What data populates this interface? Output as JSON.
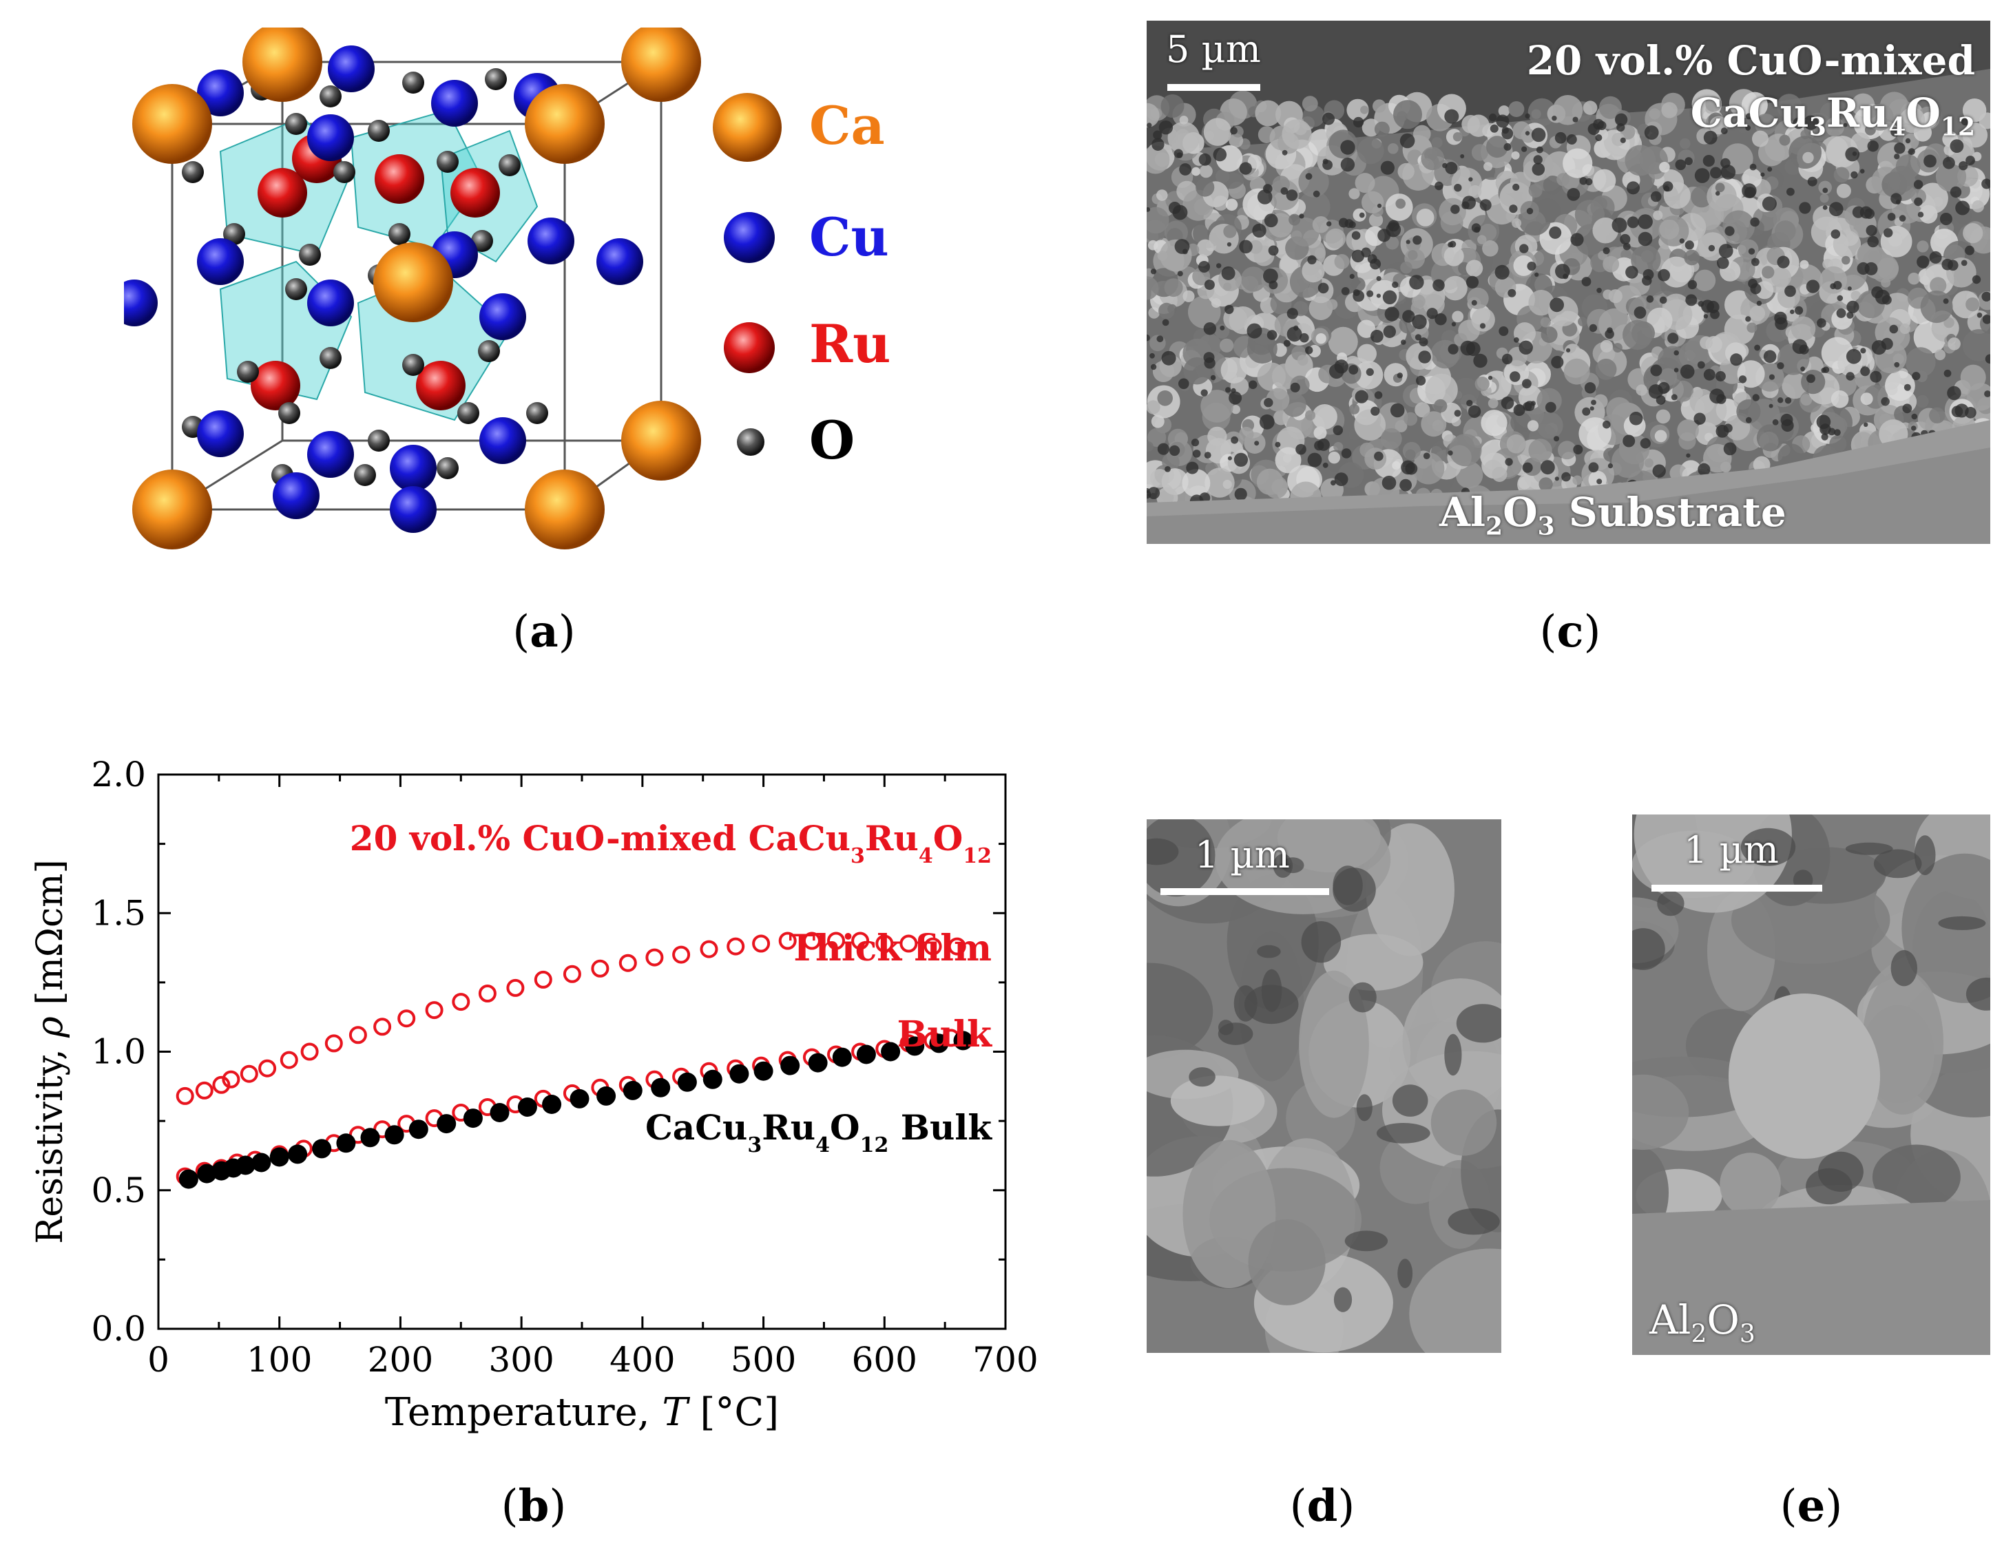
{
  "panels": {
    "a": {
      "caption": "a",
      "legend": [
        {
          "label": "Ca",
          "color": "#f07c14"
        },
        {
          "label": "Cu",
          "color": "#1a1ae0"
        },
        {
          "label": "Ru",
          "color": "#e81818"
        },
        {
          "label": "O",
          "color": "#000000"
        }
      ]
    },
    "b": {
      "caption": "b"
    },
    "c": {
      "caption": "c",
      "scale_label": "5 µm",
      "sample_line1": "20 vol.% CuO-mixed",
      "sample_line2_base": "CaCu",
      "sample_sub1": "3",
      "sample_mid": "Ru",
      "sample_sub2": "4",
      "sample_mid2": "O",
      "sample_sub3": "12",
      "substrate_base": "Al",
      "substrate_sub1": "2",
      "substrate_mid": "O",
      "substrate_sub2": "3",
      "substrate_rest": " Substrate"
    },
    "d": {
      "caption": "d",
      "scale_label": "1 µm"
    },
    "e": {
      "caption": "e",
      "scale_label": "1 µm",
      "label_base": "Al",
      "label_sub1": "2",
      "label_mid": "O",
      "label_sub2": "3"
    }
  },
  "chart_data": {
    "type": "scatter",
    "xlabel_prefix": "Temperature, ",
    "xlabel_var": "T",
    "xlabel_unit": " [°C]",
    "ylabel_prefix": "Resistivity, ",
    "ylabel_var": "ρ",
    "ylabel_unit": " [mΩcm]",
    "xlim": [
      0,
      700
    ],
    "ylim": [
      0.0,
      2.0
    ],
    "xticks": [
      "0",
      "100",
      "200",
      "300",
      "400",
      "500",
      "600",
      "700"
    ],
    "yticks": [
      "0.0",
      "0.5",
      "1.0",
      "1.5",
      "2.0"
    ],
    "annotation_title": {
      "base": "20 vol.% CuO-mixed CaCu",
      "s1": "3",
      "m": "Ru",
      "s2": "4",
      "m2": "O",
      "s3": "12",
      "color": "#e8141e"
    },
    "annotation_thick": {
      "text": "Thick film",
      "color": "#e8141e"
    },
    "annotation_bulk": {
      "text": "Bulk",
      "color": "#e8141e"
    },
    "annotation_black": {
      "base": "CaCu",
      "s1": "3",
      "m": "Ru",
      "s2": "4",
      "m2": "O",
      "s3": "12",
      "rest": " Bulk",
      "color": "#000000"
    },
    "series": [
      {
        "name": "Thick film",
        "marker": "open-circle",
        "color": "#e8141e",
        "x": [
          22,
          38,
          52,
          60,
          75,
          90,
          108,
          125,
          145,
          165,
          185,
          205,
          228,
          250,
          272,
          295,
          318,
          342,
          365,
          388,
          410,
          432,
          455,
          477,
          498,
          520,
          540,
          560,
          580,
          600,
          620,
          640,
          660
        ],
        "y": [
          0.84,
          0.86,
          0.88,
          0.9,
          0.92,
          0.94,
          0.97,
          1.0,
          1.03,
          1.06,
          1.09,
          1.12,
          1.15,
          1.18,
          1.21,
          1.23,
          1.26,
          1.28,
          1.3,
          1.32,
          1.34,
          1.35,
          1.37,
          1.38,
          1.39,
          1.4,
          1.4,
          1.4,
          1.4,
          1.39,
          1.39,
          1.38,
          1.38
        ]
      },
      {
        "name": "Bulk (20 vol.% CuO-mixed)",
        "marker": "open-circle",
        "color": "#e8141e",
        "x": [
          22,
          38,
          52,
          65,
          80,
          100,
          120,
          145,
          165,
          185,
          205,
          228,
          250,
          272,
          295,
          318,
          342,
          365,
          388,
          410,
          432,
          455,
          477,
          498,
          520,
          540,
          560,
          580,
          600,
          620,
          640,
          655
        ],
        "y": [
          0.55,
          0.57,
          0.58,
          0.6,
          0.61,
          0.63,
          0.65,
          0.67,
          0.7,
          0.72,
          0.74,
          0.76,
          0.78,
          0.8,
          0.81,
          0.83,
          0.85,
          0.87,
          0.88,
          0.9,
          0.91,
          0.93,
          0.94,
          0.95,
          0.97,
          0.98,
          0.99,
          1.0,
          1.01,
          1.03,
          1.04,
          1.05
        ]
      },
      {
        "name": "CaCu3Ru4O12 Bulk",
        "marker": "filled-circle",
        "color": "#000000",
        "x": [
          25,
          40,
          52,
          62,
          72,
          85,
          100,
          115,
          135,
          155,
          175,
          195,
          215,
          238,
          260,
          282,
          305,
          325,
          348,
          370,
          392,
          415,
          437,
          458,
          480,
          500,
          522,
          545,
          565,
          585,
          605,
          625,
          645,
          665
        ],
        "y": [
          0.54,
          0.56,
          0.57,
          0.58,
          0.59,
          0.6,
          0.62,
          0.63,
          0.65,
          0.67,
          0.69,
          0.7,
          0.72,
          0.74,
          0.76,
          0.78,
          0.8,
          0.81,
          0.83,
          0.84,
          0.86,
          0.87,
          0.89,
          0.9,
          0.92,
          0.93,
          0.95,
          0.96,
          0.98,
          0.99,
          1.0,
          1.02,
          1.03,
          1.04
        ]
      }
    ]
  }
}
